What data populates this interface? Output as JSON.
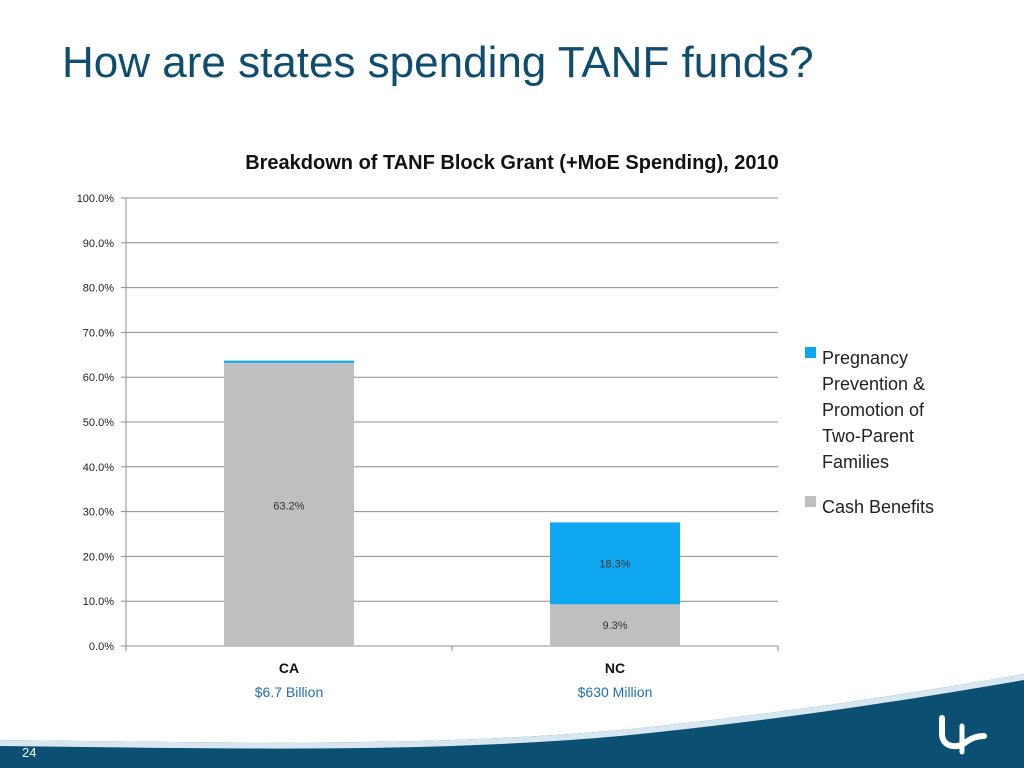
{
  "slide": {
    "title": "How are states spending TANF funds?",
    "page_number": "24"
  },
  "colors": {
    "title": "#0e4d6e",
    "cash_benefits": "#bfbfbf",
    "pregnancy_prevention": "#0fa7f0",
    "category_sublabel": "#1f6fb8",
    "footer_wave": "#0b4f73"
  },
  "logo": {
    "icon": "swoosh-logo-icon"
  },
  "chart_data": {
    "type": "bar",
    "stacked": true,
    "title": "Breakdown of TANF Block Grant (+MoE Spending), 2010",
    "xlabel": "",
    "ylabel": "",
    "ylim": [
      0,
      100
    ],
    "y_ticks": [
      "0.0%",
      "10.0%",
      "20.0%",
      "30.0%",
      "40.0%",
      "50.0%",
      "60.0%",
      "70.0%",
      "80.0%",
      "90.0%",
      "100.0%"
    ],
    "y_tick_values": [
      0,
      10,
      20,
      30,
      40,
      50,
      60,
      70,
      80,
      90,
      100
    ],
    "grid": true,
    "legend_position": "right",
    "categories": [
      "CA",
      "NC"
    ],
    "category_sublabels": [
      "$6.7 Billion",
      "$630 Million"
    ],
    "series": [
      {
        "name": "Cash Benefits",
        "values": [
          63.2,
          9.3
        ],
        "data_labels": [
          "63.2%",
          "9.3%"
        ]
      },
      {
        "name": "Pregnancy Prevention & Promotion of Two-Parent Families",
        "values": [
          0.5,
          18.3
        ],
        "data_labels": [
          "",
          "18.3%"
        ]
      }
    ],
    "legend": [
      {
        "lines": [
          "Pregnancy",
          "Prevention &",
          "Promotion of",
          "Two-Parent",
          "Families"
        ]
      },
      {
        "lines": [
          "Cash Benefits"
        ]
      }
    ]
  }
}
